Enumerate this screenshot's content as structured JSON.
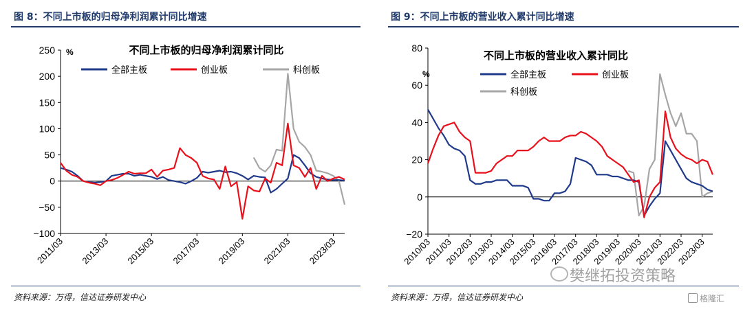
{
  "figures": [
    {
      "fig_title": "图 8：不同上市板的归母净利润累计同比增速",
      "source": "资料来源：万得，信达证券研发中心"
    },
    {
      "fig_title": "图 9：不同上市板的营业收入累计同比增速",
      "source": "资料来源：万得，信达证券研发中心"
    }
  ],
  "watermark": "樊继拓投资策略",
  "brand": "格隆汇",
  "colors": {
    "main_board": "#1f3a8a",
    "chinext": "#e8101b",
    "star": "#a6a6a6",
    "accent": "#1f3a6b"
  },
  "chart_data": [
    {
      "type": "line",
      "title": "不同上市板的归母净利润累计同比",
      "unit": "%",
      "ylim": [
        -100,
        250
      ],
      "yticks": [
        -100,
        -50,
        0,
        50,
        100,
        150,
        200,
        250
      ],
      "xlim": [
        2011.0,
        2023.5
      ],
      "xtick_labels": [
        "2011/03",
        "2013/03",
        "2015/03",
        "2017/03",
        "2019/03",
        "2021/03",
        "2023/03"
      ],
      "legend": "top",
      "series": [
        {
          "name": "全部主板",
          "x": [
            2011.0,
            2011.25,
            2011.5,
            2011.75,
            2012.0,
            2012.25,
            2012.5,
            2012.75,
            2013.0,
            2013.25,
            2013.5,
            2013.75,
            2014.0,
            2014.25,
            2014.5,
            2014.75,
            2015.0,
            2015.25,
            2015.5,
            2015.75,
            2016.0,
            2016.25,
            2016.5,
            2016.75,
            2017.0,
            2017.25,
            2017.5,
            2017.75,
            2018.0,
            2018.25,
            2018.5,
            2018.75,
            2019.0,
            2019.25,
            2019.5,
            2019.75,
            2020.0,
            2020.25,
            2020.5,
            2020.75,
            2021.0,
            2021.25,
            2021.5,
            2021.75,
            2022.0,
            2022.25,
            2022.5,
            2022.75,
            2023.0,
            2023.25,
            2023.5
          ],
          "values": [
            25,
            22,
            18,
            10,
            0,
            -2,
            -3,
            -2,
            0,
            10,
            12,
            14,
            14,
            10,
            12,
            10,
            8,
            4,
            8,
            2,
            0,
            -2,
            -5,
            0,
            6,
            18,
            16,
            18,
            20,
            17,
            18,
            15,
            10,
            3,
            10,
            8,
            7,
            -22,
            -15,
            -5,
            5,
            50,
            44,
            30,
            15,
            8,
            5,
            3,
            2,
            2,
            1
          ]
        },
        {
          "name": "创业板",
          "x": [
            2011.0,
            2011.25,
            2011.5,
            2011.75,
            2012.0,
            2012.25,
            2012.5,
            2012.75,
            2013.0,
            2013.25,
            2013.5,
            2013.75,
            2014.0,
            2014.25,
            2014.5,
            2014.75,
            2015.0,
            2015.25,
            2015.5,
            2015.75,
            2016.0,
            2016.25,
            2016.5,
            2016.75,
            2017.0,
            2017.25,
            2017.5,
            2017.75,
            2018.0,
            2018.25,
            2018.5,
            2018.75,
            2019.0,
            2019.25,
            2019.5,
            2019.75,
            2020.0,
            2020.25,
            2020.5,
            2020.75,
            2021.0,
            2021.25,
            2021.5,
            2021.75,
            2022.0,
            2022.25,
            2022.5,
            2022.75,
            2023.0,
            2023.25,
            2023.5
          ],
          "values": [
            35,
            20,
            12,
            8,
            0,
            -3,
            -5,
            -8,
            0,
            2,
            6,
            12,
            18,
            14,
            15,
            15,
            22,
            8,
            20,
            22,
            25,
            63,
            50,
            44,
            35,
            10,
            5,
            3,
            -15,
            28,
            -10,
            -2,
            -72,
            -10,
            -18,
            -20,
            5,
            -3,
            35,
            30,
            110,
            30,
            25,
            8,
            25,
            -15,
            10,
            0,
            5,
            8,
            3
          ]
        },
        {
          "name": "科创板",
          "x": [
            2019.5,
            2019.75,
            2020.0,
            2020.25,
            2020.5,
            2020.75,
            2021.0,
            2021.25,
            2021.5,
            2021.75,
            2022.0,
            2022.25,
            2022.5,
            2022.75,
            2023.0,
            2023.25,
            2023.5
          ],
          "values": [
            45,
            25,
            18,
            30,
            60,
            58,
            205,
            100,
            75,
            65,
            50,
            20,
            18,
            15,
            10,
            0,
            -45
          ]
        }
      ]
    },
    {
      "type": "line",
      "title": "不同上市板的营业收入累计同比",
      "unit": "%",
      "ylim": [
        -20,
        80
      ],
      "yticks": [
        -20,
        0,
        20,
        40,
        60,
        80
      ],
      "xlim": [
        2010.0,
        2023.5
      ],
      "xtick_labels": [
        "2010/03",
        "2011/03",
        "2012/03",
        "2013/03",
        "2014/03",
        "2015/03",
        "2016/03",
        "2017/03",
        "2018/03",
        "2019/03",
        "2020/03",
        "2021/03",
        "2022/03",
        "2023/03"
      ],
      "legend": "top",
      "series": [
        {
          "name": "全部主板",
          "x": [
            2010.0,
            2010.25,
            2010.5,
            2010.75,
            2011.0,
            2011.25,
            2011.5,
            2011.75,
            2012.0,
            2012.25,
            2012.5,
            2012.75,
            2013.0,
            2013.25,
            2013.5,
            2013.75,
            2014.0,
            2014.25,
            2014.5,
            2014.75,
            2015.0,
            2015.25,
            2015.5,
            2015.75,
            2016.0,
            2016.25,
            2016.5,
            2016.75,
            2017.0,
            2017.25,
            2017.5,
            2017.75,
            2018.0,
            2018.25,
            2018.5,
            2018.75,
            2019.0,
            2019.25,
            2019.5,
            2019.75,
            2020.0,
            2020.25,
            2020.5,
            2020.75,
            2021.0,
            2021.25,
            2021.5,
            2021.75,
            2022.0,
            2022.25,
            2022.5,
            2022.75,
            2023.0,
            2023.25,
            2023.5
          ],
          "values": [
            47,
            42,
            37,
            33,
            28,
            26,
            25,
            22,
            9,
            7,
            7,
            8,
            8,
            9,
            9,
            9,
            6,
            6,
            6,
            5,
            -1,
            -1,
            -2,
            -2,
            2,
            2,
            3,
            7,
            21,
            20,
            19,
            17,
            12,
            12,
            12,
            11,
            11,
            10,
            9,
            9,
            8,
            -10,
            -5,
            -1,
            2,
            30,
            25,
            20,
            15,
            10,
            8,
            7,
            6,
            4,
            3
          ]
        },
        {
          "name": "创业板",
          "x": [
            2010.0,
            2010.25,
            2010.5,
            2010.75,
            2011.0,
            2011.25,
            2011.5,
            2011.75,
            2012.0,
            2012.25,
            2012.5,
            2012.75,
            2013.0,
            2013.25,
            2013.5,
            2013.75,
            2014.0,
            2014.25,
            2014.5,
            2014.75,
            2015.0,
            2015.25,
            2015.5,
            2015.75,
            2016.0,
            2016.25,
            2016.5,
            2016.75,
            2017.0,
            2017.25,
            2017.5,
            2017.75,
            2018.0,
            2018.25,
            2018.5,
            2018.75,
            2019.0,
            2019.25,
            2019.5,
            2019.75,
            2020.0,
            2020.25,
            2020.5,
            2020.75,
            2021.0,
            2021.25,
            2021.5,
            2021.75,
            2022.0,
            2022.25,
            2022.5,
            2022.75,
            2023.0,
            2023.25,
            2023.5
          ],
          "values": [
            18,
            26,
            33,
            38,
            39,
            40,
            35,
            32,
            30,
            13,
            13,
            13,
            14,
            18,
            20,
            22,
            22,
            25,
            25,
            25,
            27,
            30,
            32,
            30,
            30,
            30,
            32,
            33,
            33,
            35,
            34,
            32,
            30,
            27,
            22,
            20,
            18,
            16,
            12,
            8,
            9,
            -11,
            0,
            5,
            8,
            46,
            32,
            26,
            23,
            21,
            20,
            18,
            20,
            19,
            12
          ]
        },
        {
          "name": "科创板",
          "x": [
            2019.5,
            2019.75,
            2020.0,
            2020.25,
            2020.5,
            2020.75,
            2021.0,
            2021.25,
            2021.5,
            2021.75,
            2022.0,
            2022.25,
            2022.5,
            2022.75,
            2023.0,
            2023.25,
            2023.5
          ],
          "values": [
            14,
            13,
            -10,
            -5,
            15,
            20,
            66,
            55,
            45,
            38,
            45,
            34,
            34,
            30,
            0,
            2,
            3
          ]
        }
      ]
    }
  ]
}
